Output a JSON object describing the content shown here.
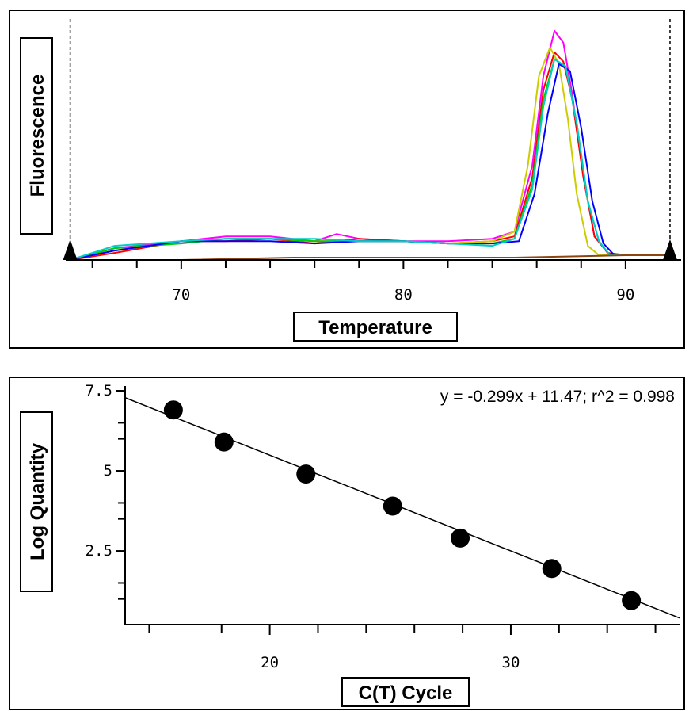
{
  "chart_data": [
    {
      "type": "line",
      "title": "",
      "xlabel": "Temperature",
      "ylabel": "Fluorescence",
      "xlim": [
        64.8,
        92.5
      ],
      "ylim": [
        0,
        1.0
      ],
      "x_ticks": [
        70,
        80,
        90
      ],
      "x_minor_ticks": [
        66,
        68,
        72,
        74,
        76,
        78,
        82,
        84,
        86,
        88
      ],
      "y_ticks_labeled": false,
      "grid": false,
      "legend": "none",
      "threshold_markers": [
        65.0,
        92.0
      ],
      "series": [
        {
          "color": "#ff00ff",
          "x": [
            65,
            67,
            70,
            72,
            74,
            76,
            77,
            78,
            80,
            82,
            84,
            85,
            85.8,
            86.3,
            86.8,
            87.2,
            87.6,
            88.1,
            88.6,
            89.2,
            90,
            92
          ],
          "y": [
            0.0,
            0.05,
            0.08,
            0.1,
            0.1,
            0.08,
            0.11,
            0.09,
            0.08,
            0.08,
            0.09,
            0.12,
            0.4,
            0.78,
            0.97,
            0.92,
            0.7,
            0.35,
            0.1,
            0.03,
            0.02,
            0.02
          ]
        },
        {
          "color": "#ff0000",
          "x": [
            65,
            67,
            70,
            72,
            74,
            76,
            78,
            80,
            82,
            84,
            85,
            85.8,
            86.3,
            86.8,
            87.2,
            87.6,
            88.1,
            88.6,
            89.2,
            90,
            92
          ],
          "y": [
            0.0,
            0.03,
            0.08,
            0.08,
            0.09,
            0.07,
            0.09,
            0.08,
            0.07,
            0.08,
            0.1,
            0.35,
            0.72,
            0.88,
            0.84,
            0.68,
            0.35,
            0.1,
            0.03,
            0.02,
            0.02
          ]
        },
        {
          "color": "#cccc00",
          "x": [
            65,
            67,
            70,
            72,
            74,
            76,
            78,
            80,
            82,
            84,
            85,
            85.6,
            86.1,
            86.6,
            87.0,
            87.4,
            87.8,
            88.3,
            88.8,
            90,
            92
          ],
          "y": [
            0.0,
            0.04,
            0.08,
            0.09,
            0.09,
            0.08,
            0.08,
            0.08,
            0.07,
            0.08,
            0.12,
            0.4,
            0.78,
            0.9,
            0.83,
            0.6,
            0.28,
            0.06,
            0.02,
            0.02,
            0.02
          ]
        },
        {
          "color": "#00cc00",
          "x": [
            65,
            67,
            70,
            72,
            74,
            76,
            78,
            80,
            82,
            84,
            85,
            85.8,
            86.3,
            86.8,
            87.3,
            87.8,
            88.3,
            88.8,
            89.3,
            90,
            92
          ],
          "y": [
            0.0,
            0.05,
            0.07,
            0.09,
            0.09,
            0.08,
            0.08,
            0.08,
            0.07,
            0.07,
            0.09,
            0.32,
            0.68,
            0.85,
            0.82,
            0.58,
            0.25,
            0.08,
            0.02,
            0.02,
            0.02
          ]
        },
        {
          "color": "#0000ff",
          "x": [
            65,
            67,
            70,
            72,
            74,
            76,
            78,
            80,
            82,
            84,
            85.2,
            85.9,
            86.5,
            87.0,
            87.5,
            88.0,
            88.5,
            89.0,
            89.5,
            90,
            92
          ],
          "y": [
            0.0,
            0.04,
            0.08,
            0.08,
            0.08,
            0.07,
            0.08,
            0.08,
            0.07,
            0.07,
            0.08,
            0.28,
            0.62,
            0.83,
            0.8,
            0.56,
            0.25,
            0.07,
            0.02,
            0.02,
            0.02
          ]
        },
        {
          "color": "#00cccc",
          "x": [
            65,
            67,
            70,
            72,
            74,
            76,
            78,
            80,
            82,
            84,
            85,
            85.8,
            86.3,
            86.8,
            87.3,
            87.8,
            88.3,
            88.8,
            89.3,
            90,
            92
          ],
          "y": [
            0.0,
            0.06,
            0.08,
            0.09,
            0.09,
            0.09,
            0.08,
            0.08,
            0.07,
            0.06,
            0.09,
            0.3,
            0.65,
            0.85,
            0.82,
            0.58,
            0.25,
            0.08,
            0.02,
            0.02,
            0.02
          ]
        },
        {
          "color": "#8b4513",
          "x": [
            65,
            70,
            75,
            80,
            85,
            90,
            92
          ],
          "y": [
            0.0,
            0.0,
            0.01,
            0.01,
            0.01,
            0.02,
            0.02
          ]
        }
      ]
    },
    {
      "type": "scatter",
      "title": "",
      "xlabel": "C(T) Cycle",
      "ylabel": "Log Quantity",
      "xlim": [
        14,
        37
      ],
      "ylim": [
        0.2,
        7.55
      ],
      "x_ticks": [
        20,
        30
      ],
      "x_minor_ticks": [
        15,
        18,
        22,
        24,
        26,
        28,
        32,
        34,
        36
      ],
      "y_ticks": [
        2.5,
        5,
        7.5
      ],
      "y_tick_labels": [
        "2.5",
        "5",
        "7.5"
      ],
      "y_minor_ticks": [
        1.0,
        1.5,
        3.5,
        4.0,
        6.0,
        6.5
      ],
      "grid": false,
      "legend": "none",
      "fit_equation": "y = -0.299x + 11.47; r^2 = 0.998",
      "fit": {
        "slope": -0.299,
        "intercept": 11.47,
        "x_range": [
          14,
          37
        ]
      },
      "points": [
        {
          "x": 16.0,
          "y": 6.9
        },
        {
          "x": 18.1,
          "y": 5.9
        },
        {
          "x": 21.5,
          "y": 4.9
        },
        {
          "x": 25.1,
          "y": 3.9
        },
        {
          "x": 27.9,
          "y": 2.9
        },
        {
          "x": 31.7,
          "y": 1.95
        },
        {
          "x": 35.0,
          "y": 0.95
        }
      ]
    }
  ]
}
